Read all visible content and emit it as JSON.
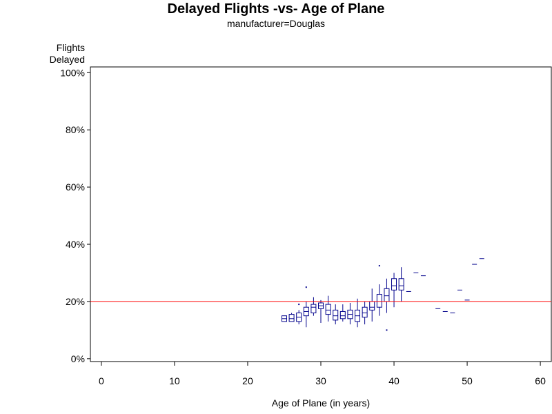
{
  "chart_data": {
    "type": "box",
    "title": "Delayed Flights -vs- Age of Plane",
    "subtitle": "manufacturer=Douglas",
    "ylabel_line1": "Flights",
    "ylabel_line2": "Delayed",
    "xlabel": "Age of Plane (in years)",
    "xlim": [
      -1.5,
      61.5
    ],
    "ylim": [
      -0.01,
      1.02
    ],
    "xticks": [
      0,
      10,
      20,
      30,
      40,
      50,
      60
    ],
    "xtick_labels": [
      "0",
      "10",
      "20",
      "30",
      "40",
      "50",
      "60"
    ],
    "yticks": [
      0,
      0.2,
      0.4,
      0.6,
      0.8,
      1.0
    ],
    "ytick_labels": [
      "0%",
      "20%",
      "40%",
      "60%",
      "80%",
      "100%"
    ],
    "reference_line": 0.2,
    "colors": {
      "box": "#00008b",
      "reference": "#ff0000",
      "frame": "#000000"
    },
    "boxes": [
      {
        "x": 25,
        "min": 0.13,
        "q1": 0.13,
        "median": 0.14,
        "q3": 0.15,
        "max": 0.15
      },
      {
        "x": 26,
        "min": 0.13,
        "q1": 0.13,
        "median": 0.14,
        "q3": 0.155,
        "max": 0.16
      },
      {
        "x": 27,
        "min": 0.12,
        "q1": 0.13,
        "median": 0.145,
        "q3": 0.16,
        "max": 0.17,
        "outliers": [
          0.19
        ]
      },
      {
        "x": 28,
        "min": 0.11,
        "q1": 0.15,
        "median": 0.165,
        "q3": 0.18,
        "max": 0.2,
        "outliers": [
          0.25
        ]
      },
      {
        "x": 29,
        "min": 0.15,
        "q1": 0.16,
        "median": 0.18,
        "q3": 0.19,
        "max": 0.215
      },
      {
        "x": 30,
        "min": 0.125,
        "q1": 0.175,
        "median": 0.185,
        "q3": 0.195,
        "max": 0.205
      },
      {
        "x": 31,
        "min": 0.13,
        "q1": 0.155,
        "median": 0.17,
        "q3": 0.19,
        "max": 0.22
      },
      {
        "x": 32,
        "min": 0.12,
        "q1": 0.135,
        "median": 0.15,
        "q3": 0.17,
        "max": 0.19
      },
      {
        "x": 33,
        "min": 0.13,
        "q1": 0.14,
        "median": 0.15,
        "q3": 0.165,
        "max": 0.19
      },
      {
        "x": 34,
        "min": 0.12,
        "q1": 0.14,
        "median": 0.155,
        "q3": 0.17,
        "max": 0.195
      },
      {
        "x": 35,
        "min": 0.11,
        "q1": 0.13,
        "median": 0.15,
        "q3": 0.17,
        "max": 0.21
      },
      {
        "x": 36,
        "min": 0.12,
        "q1": 0.145,
        "median": 0.16,
        "q3": 0.18,
        "max": 0.2
      },
      {
        "x": 37,
        "min": 0.13,
        "q1": 0.17,
        "median": 0.18,
        "q3": 0.2,
        "max": 0.245
      },
      {
        "x": 38,
        "min": 0.15,
        "q1": 0.18,
        "median": 0.2,
        "q3": 0.225,
        "max": 0.26,
        "outliers": [
          0.325
        ]
      },
      {
        "x": 39,
        "min": 0.16,
        "q1": 0.2,
        "median": 0.22,
        "q3": 0.245,
        "max": 0.28,
        "outliers": [
          0.1
        ]
      },
      {
        "x": 40,
        "min": 0.18,
        "q1": 0.24,
        "median": 0.255,
        "q3": 0.28,
        "max": 0.3
      },
      {
        "x": 41,
        "min": 0.2,
        "q1": 0.24,
        "median": 0.255,
        "q3": 0.28,
        "max": 0.32
      },
      {
        "x": 42,
        "min": 0.235,
        "q1": 0.235,
        "median": 0.235,
        "q3": 0.235,
        "max": 0.235
      },
      {
        "x": 43,
        "min": 0.3,
        "q1": 0.3,
        "median": 0.3,
        "q3": 0.3,
        "max": 0.3
      },
      {
        "x": 44,
        "min": 0.29,
        "q1": 0.29,
        "median": 0.29,
        "q3": 0.29,
        "max": 0.29
      },
      {
        "x": 46,
        "min": 0.175,
        "q1": 0.175,
        "median": 0.175,
        "q3": 0.175,
        "max": 0.175
      },
      {
        "x": 47,
        "min": 0.165,
        "q1": 0.165,
        "median": 0.165,
        "q3": 0.165,
        "max": 0.165
      },
      {
        "x": 48,
        "min": 0.16,
        "q1": 0.16,
        "median": 0.16,
        "q3": 0.16,
        "max": 0.16
      },
      {
        "x": 49,
        "min": 0.24,
        "q1": 0.24,
        "median": 0.24,
        "q3": 0.24,
        "max": 0.24
      },
      {
        "x": 50,
        "min": 0.205,
        "q1": 0.205,
        "median": 0.205,
        "q3": 0.205,
        "max": 0.205
      },
      {
        "x": 51,
        "min": 0.33,
        "q1": 0.33,
        "median": 0.33,
        "q3": 0.33,
        "max": 0.33
      },
      {
        "x": 52,
        "min": 0.35,
        "q1": 0.35,
        "median": 0.35,
        "q3": 0.35,
        "max": 0.35
      }
    ]
  }
}
